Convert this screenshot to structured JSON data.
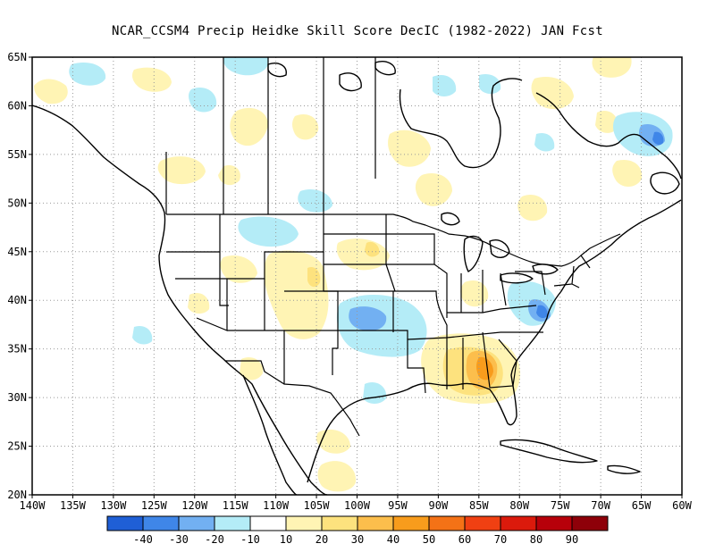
{
  "title": "NCAR_CCSM4 Precip Heidke Skill Score DecIC (1982-2022) JAN Fcst",
  "map": {
    "lon_range": [
      -140,
      -60
    ],
    "lat_range": [
      20,
      65
    ],
    "lat_labels": [
      "65N",
      "60N",
      "55N",
      "50N",
      "45N",
      "40N",
      "35N",
      "30N",
      "25N",
      "20N"
    ],
    "lon_labels": [
      "140W",
      "135W",
      "130W",
      "125W",
      "120W",
      "115W",
      "110W",
      "105W",
      "100W",
      "95W",
      "90W",
      "85W",
      "80W",
      "75W",
      "70W",
      "65W",
      "60W"
    ],
    "gridlines": "dotted"
  },
  "colorbar": {
    "colors": [
      "#1f5fd6",
      "#3f86e8",
      "#72b0f2",
      "#b4ecf7",
      "#ffffff",
      "#fff4b4",
      "#fde27e",
      "#fcbe4c",
      "#f89c1c",
      "#f47216",
      "#f04012",
      "#db1a0c",
      "#b7000a",
      "#8e0009"
    ],
    "labels": [
      "-40",
      "-30",
      "-20",
      "-10",
      "10",
      "20",
      "30",
      "40",
      "50",
      "60",
      "70",
      "80",
      "90"
    ]
  },
  "skill_regions": [
    {
      "name": "Southeast (Georgia/Alabama)",
      "lon": [
        -87,
        -82
      ],
      "lat": [
        30,
        35
      ],
      "level": "40-60",
      "sign": "positive"
    },
    {
      "name": "Kansas/Missouri",
      "lon": [
        -104,
        -90
      ],
      "lat": [
        35,
        40
      ],
      "level": "-10 to -30",
      "sign": "negative"
    },
    {
      "name": "Virginia/Maryland",
      "lon": [
        -79,
        -75
      ],
      "lat": [
        36,
        40
      ],
      "level": "-20 to -30",
      "sign": "negative"
    },
    {
      "name": "Labrador",
      "lon": [
        -66,
        -61
      ],
      "lat": [
        53,
        57
      ],
      "level": "-20 to -30",
      "sign": "negative"
    },
    {
      "name": "Colorado/Utah",
      "lon": [
        -113,
        -103
      ],
      "lat": [
        36,
        44
      ],
      "level": "20-40",
      "sign": "positive"
    }
  ]
}
